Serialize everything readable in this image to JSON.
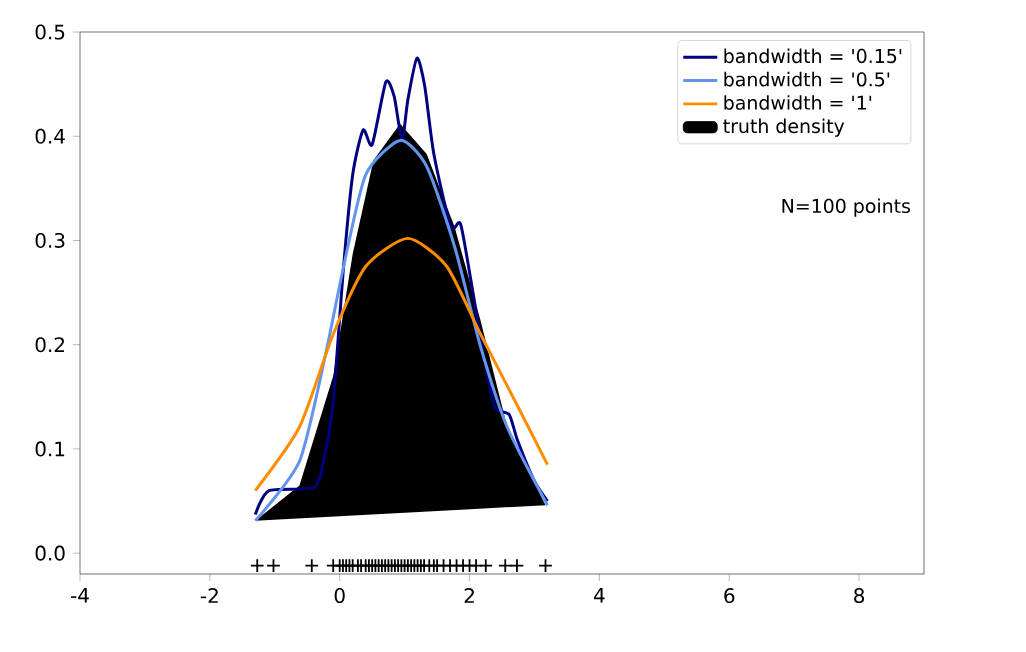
{
  "chart_data": {
    "type": "line",
    "xlim": [
      -4,
      9
    ],
    "ylim": [
      -0.02,
      0.5
    ],
    "xticks": [
      -4,
      -2,
      0,
      2,
      4,
      6,
      8
    ],
    "yticks": [
      {
        "value": 0,
        "label": "0.0"
      },
      0.1,
      0.2,
      0.3,
      0.4,
      0.5
    ],
    "legend": "top right",
    "grid": false,
    "annotations": [
      "N=100 points"
    ],
    "series": [
      {
        "name": "truth density",
        "type": "area",
        "color": "#000000",
        "x": [
          -1.3,
          -0.62,
          -0.1,
          0.2,
          0.52,
          0.93,
          1.34,
          1.77,
          2.17,
          2.58,
          3.17
        ],
        "values": [
          0.031,
          0.065,
          0.17,
          0.287,
          0.377,
          0.412,
          0.383,
          0.313,
          0.223,
          0.121,
          0.046
        ]
      },
      {
        "name": "bandwidth = '0.15'",
        "color": "#000080",
        "x": [
          -1.3,
          -1.09,
          -0.4,
          -0.25,
          -0.1,
          0.06,
          0.2,
          0.36,
          0.5,
          0.71,
          0.84,
          0.96,
          1.05,
          1.19,
          1.31,
          1.45,
          1.71,
          1.86,
          2.02,
          2.23,
          2.39,
          2.61,
          2.74,
          3.0,
          3.2
        ],
        "values": [
          0.037,
          0.06,
          0.063,
          0.088,
          0.146,
          0.275,
          0.363,
          0.406,
          0.392,
          0.452,
          0.438,
          0.396,
          0.435,
          0.475,
          0.448,
          0.383,
          0.313,
          0.316,
          0.262,
          0.185,
          0.14,
          0.133,
          0.108,
          0.069,
          0.05
        ]
      },
      {
        "name": "bandwidth = '0.5'",
        "color": "#6495ed",
        "x": [
          -1.3,
          -0.62,
          -0.22,
          0.06,
          0.4,
          0.93,
          1.34,
          1.77,
          2.17,
          2.58,
          3.2
        ],
        "values": [
          0.031,
          0.088,
          0.19,
          0.275,
          0.363,
          0.396,
          0.371,
          0.294,
          0.198,
          0.121,
          0.046
        ]
      },
      {
        "name": "bandwidth = '1'",
        "color": "#ff8c00",
        "x": [
          -1.3,
          -0.62,
          -0.1,
          0.4,
          1.05,
          1.65,
          2.17,
          2.7,
          3.2
        ],
        "values": [
          0.06,
          0.121,
          0.21,
          0.275,
          0.302,
          0.275,
          0.21,
          0.146,
          0.085
        ]
      },
      {
        "type": "scatter",
        "marker": "cross",
        "color": "#000000",
        "x": [
          -1.27,
          -1.02,
          -0.43,
          -0.1,
          0.0,
          0.05,
          0.1,
          0.15,
          0.2,
          0.28,
          0.33,
          0.4,
          0.45,
          0.5,
          0.55,
          0.6,
          0.65,
          0.7,
          0.75,
          0.8,
          0.85,
          0.9,
          0.95,
          1.0,
          1.05,
          1.1,
          1.15,
          1.2,
          1.25,
          1.3,
          1.38,
          1.45,
          1.5,
          1.6,
          1.7,
          1.8,
          1.9,
          2.0,
          2.1,
          2.25,
          2.55,
          2.73,
          3.17
        ],
        "values": [
          -0.012,
          -0.012,
          -0.012,
          -0.012,
          -0.012,
          -0.012,
          -0.012,
          -0.012,
          -0.012,
          -0.012,
          -0.012,
          -0.012,
          -0.012,
          -0.012,
          -0.012,
          -0.012,
          -0.012,
          -0.012,
          -0.012,
          -0.012,
          -0.012,
          -0.012,
          -0.012,
          -0.012,
          -0.012,
          -0.012,
          -0.012,
          -0.012,
          -0.012,
          -0.012,
          -0.012,
          -0.012,
          -0.012,
          -0.012,
          -0.012,
          -0.012,
          -0.012,
          -0.012,
          -0.012,
          -0.012,
          -0.012,
          -0.012,
          -0.012
        ]
      }
    ]
  }
}
